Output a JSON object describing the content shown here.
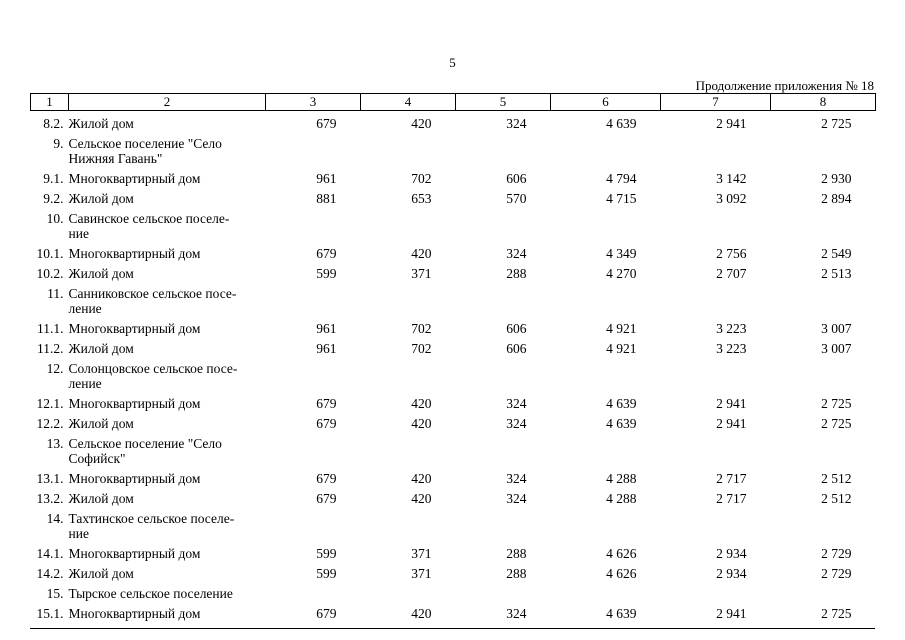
{
  "page": {
    "page_number": "5",
    "continuation_label": "Продолжение приложения № 18"
  },
  "table": {
    "header": [
      "1",
      "2",
      "3",
      "4",
      "5",
      "6",
      "7",
      "8"
    ],
    "rows": [
      {
        "num": "8.2.",
        "name": "Жилой дом",
        "values": [
          "679",
          "420",
          "324",
          "4 639",
          "2 941",
          "2 725"
        ]
      },
      {
        "num": "9.",
        "name": "Сельское поселение \"Село\nНижняя Гавань\"",
        "values": []
      },
      {
        "num": "9.1.",
        "name": "Многоквартирный дом",
        "values": [
          "961",
          "702",
          "606",
          "4 794",
          "3 142",
          "2 930"
        ]
      },
      {
        "num": "9.2.",
        "name": "Жилой дом",
        "values": [
          "881",
          "653",
          "570",
          "4 715",
          "3 092",
          "2 894"
        ]
      },
      {
        "num": "10.",
        "name": "Савинское сельское поселе-\nние",
        "values": []
      },
      {
        "num": "10.1.",
        "name": "Многоквартирный дом",
        "values": [
          "679",
          "420",
          "324",
          "4 349",
          "2 756",
          "2 549"
        ]
      },
      {
        "num": "10.2.",
        "name": "Жилой дом",
        "values": [
          "599",
          "371",
          "288",
          "4 270",
          "2 707",
          "2 513"
        ]
      },
      {
        "num": "11.",
        "name": "Санниковское сельское посе-\nление",
        "values": []
      },
      {
        "num": "11.1.",
        "name": "Многоквартирный дом",
        "values": [
          "961",
          "702",
          "606",
          "4 921",
          "3 223",
          "3 007"
        ]
      },
      {
        "num": "11.2.",
        "name": "Жилой дом",
        "values": [
          "961",
          "702",
          "606",
          "4 921",
          "3 223",
          "3 007"
        ]
      },
      {
        "num": "12.",
        "name": "Солонцовское сельское посе-\nление",
        "values": []
      },
      {
        "num": "12.1.",
        "name": "Многоквартирный дом",
        "values": [
          "679",
          "420",
          "324",
          "4 639",
          "2 941",
          "2 725"
        ]
      },
      {
        "num": "12.2.",
        "name": "Жилой дом",
        "values": [
          "679",
          "420",
          "324",
          "4 639",
          "2 941",
          "2 725"
        ]
      },
      {
        "num": "13.",
        "name": "Сельское поселение \"Село\nСофийск\"",
        "values": []
      },
      {
        "num": "13.1.",
        "name": "Многоквартирный дом",
        "values": [
          "679",
          "420",
          "324",
          "4 288",
          "2 717",
          "2 512"
        ]
      },
      {
        "num": "13.2.",
        "name": "Жилой дом",
        "values": [
          "679",
          "420",
          "324",
          "4 288",
          "2 717",
          "2 512"
        ]
      },
      {
        "num": "14.",
        "name": "Тахтинское сельское поселе-\nние",
        "values": []
      },
      {
        "num": "14.1.",
        "name": "Многоквартирный дом",
        "values": [
          "599",
          "371",
          "288",
          "4 626",
          "2 934",
          "2 729"
        ]
      },
      {
        "num": "14.2.",
        "name": "Жилой дом",
        "values": [
          "599",
          "371",
          "288",
          "4 626",
          "2 934",
          "2 729"
        ]
      },
      {
        "num": "15.",
        "name": "Тырское сельское поселение",
        "values": []
      },
      {
        "num": "15.1.",
        "name": "Многоквартирный дом",
        "values": [
          "679",
          "420",
          "324",
          "4 639",
          "2 941",
          "2 725"
        ]
      }
    ]
  }
}
